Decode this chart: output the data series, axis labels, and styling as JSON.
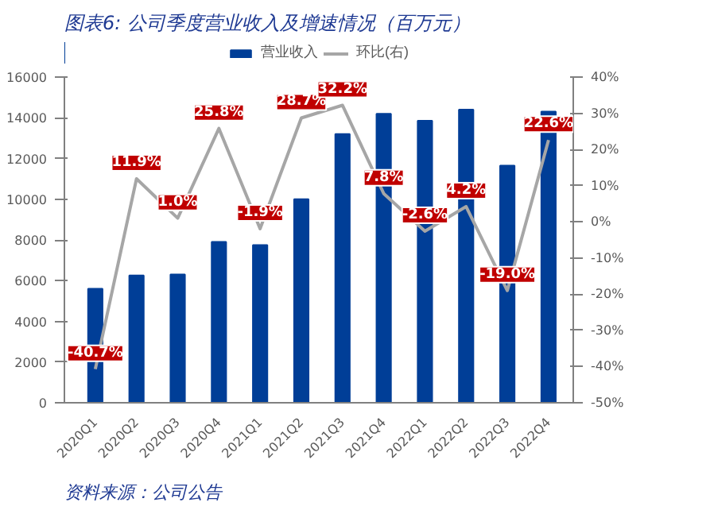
{
  "chart_data": {
    "type": "bar",
    "title": "图表6: 公司季度营业收入及增速情况（百万元）",
    "categories": [
      "2020Q1",
      "2020Q2",
      "2020Q3",
      "2020Q4",
      "2021Q1",
      "2021Q2",
      "2021Q3",
      "2021Q4",
      "2022Q1",
      "2022Q2",
      "2022Q3",
      "2022Q4"
    ],
    "series": [
      {
        "name": "营业收入",
        "color": "#003e97",
        "values": [
          5600,
          6250,
          6300,
          7900,
          7750,
          10000,
          13200,
          14200,
          13850,
          14400,
          11650,
          14300
        ]
      },
      {
        "name": "环比(右)",
        "type": "line",
        "axis": "y2",
        "color": "#a6a6a6",
        "values": [
          -40.7,
          11.9,
          1.0,
          25.8,
          -1.9,
          28.7,
          32.2,
          7.8,
          -2.6,
          4.2,
          -19.0,
          22.6
        ],
        "value_labels": [
          "-40.7%",
          "11.9%",
          "1.0%",
          "25.8%",
          "-1.9%",
          "28.7%",
          "32.2%",
          "7.8%",
          "-2.6%",
          "4.2%",
          "-19.0%",
          "22.6%"
        ]
      }
    ],
    "ylim": [
      0,
      16000
    ],
    "yticks": [
      0,
      2000,
      4000,
      6000,
      8000,
      10000,
      12000,
      14000,
      16000
    ],
    "y2lim": [
      -50,
      40
    ],
    "y2ticks": [
      {
        "value": -50,
        "label": "-50%"
      },
      {
        "value": -40,
        "label": "-40%"
      },
      {
        "value": -30,
        "label": "-30%"
      },
      {
        "value": -20,
        "label": "-20%"
      },
      {
        "value": -10,
        "label": "-10%"
      },
      {
        "value": 0,
        "label": "0%"
      },
      {
        "value": 10,
        "label": "10%"
      },
      {
        "value": 20,
        "label": "20%"
      },
      {
        "value": 30,
        "label": "30%"
      },
      {
        "value": 40,
        "label": "40%"
      }
    ],
    "grid": false,
    "legend": "top",
    "annotations": [
      "资料来源：公司公告"
    ]
  }
}
